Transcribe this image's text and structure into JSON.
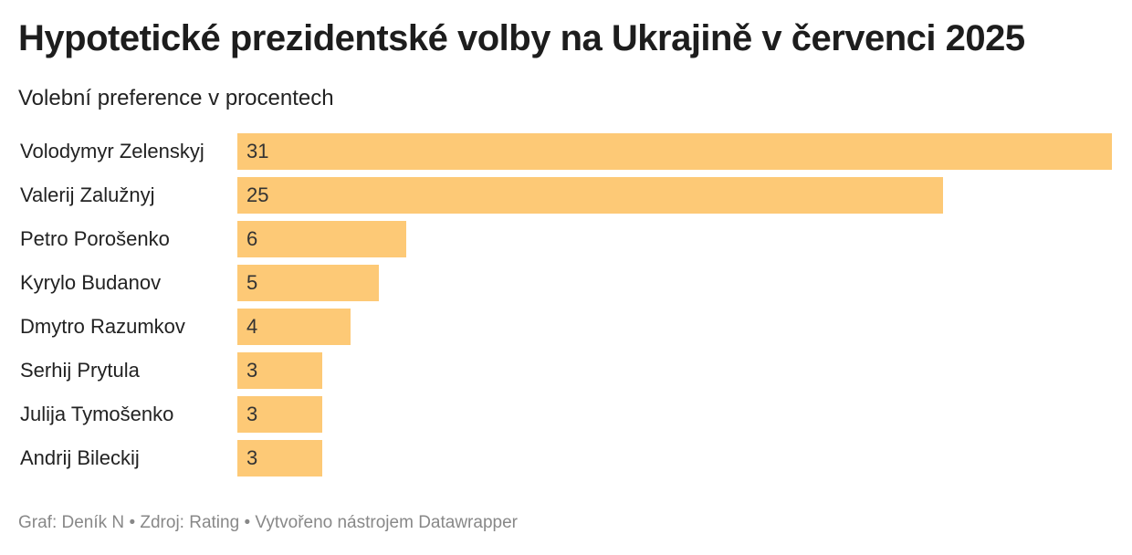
{
  "chart_data": {
    "type": "bar",
    "orientation": "horizontal",
    "title": "Hypotetické prezidentské volby na Ukrajině v červenci 2025",
    "subtitle": "Volební preference v procentech",
    "categories": [
      "Volodymyr Zelenskyj",
      "Valerij Zalužnyj",
      "Petro Porošenko",
      "Kyrylo Budanov",
      "Dmytro Razumkov",
      "Serhij Prytula",
      "Julija Tymošenko",
      "Andrij Bileckij"
    ],
    "values": [
      31,
      25,
      6,
      5,
      4,
      3,
      3,
      3
    ],
    "xlim": [
      0,
      31
    ],
    "grid": false,
    "bar_color": "#fdc976"
  },
  "footer": {
    "graf_label": "Graf:",
    "graf_link": "Deník N",
    "sep1": "•",
    "source_label": "Zdroj:",
    "source_link": "Rating",
    "sep2": "•",
    "created": "Vytvořeno nástrojem",
    "tool_link": "Datawrapper"
  }
}
